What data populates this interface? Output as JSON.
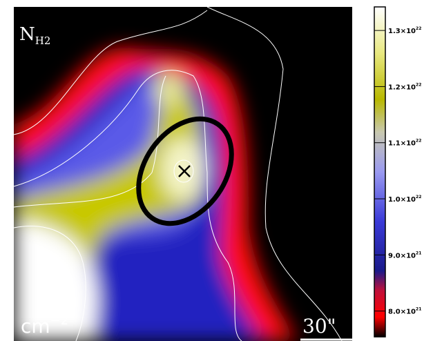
{
  "map": {
    "label": "N",
    "label_sub": "H2",
    "unit": "cm",
    "unit_exp": "−2",
    "scale_bar": "30\""
  },
  "colorbar": {
    "clim": [
      7.54e+21,
      1.342e+22
    ],
    "ticks": [
      {
        "value": 1.3e+22,
        "base": "1.3×10",
        "exp": "22"
      },
      {
        "value": 1.2e+22,
        "base": "1.2×10",
        "exp": "22"
      },
      {
        "value": 1.1e+22,
        "base": "1.1×10",
        "exp": "22"
      },
      {
        "value": 1e+22,
        "base": "1.0×10",
        "exp": "22"
      },
      {
        "value": 9e+21,
        "base": "9.0×10",
        "exp": "21"
      },
      {
        "value": 8e+21,
        "base": "8.0×10",
        "exp": "21"
      }
    ]
  }
}
